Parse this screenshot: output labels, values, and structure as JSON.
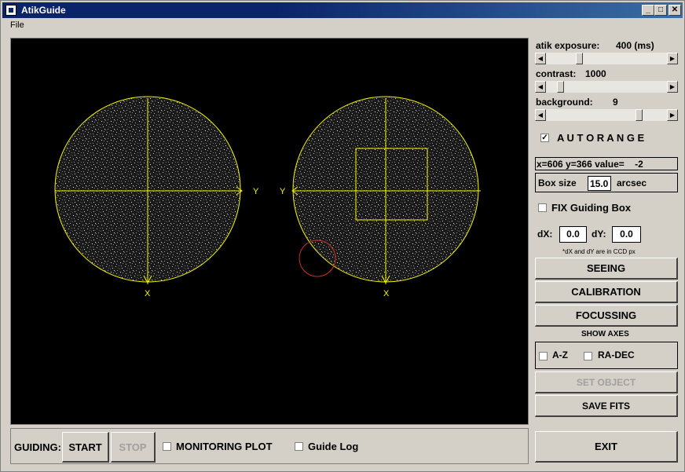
{
  "window": {
    "title": "AtikGuide",
    "min": "_",
    "max": "□",
    "close": "✕"
  },
  "menu": {
    "file": "File"
  },
  "viewport": {
    "axis_left_y": "Y",
    "axis_left_x": "X",
    "axis_right_y": "Y",
    "axis_right_x": "X",
    "crosshair_color": "#f5f500",
    "marker_color": "#d03020"
  },
  "controls": {
    "exposure_label": "atik exposure:",
    "exposure_value": "400 (ms)",
    "contrast_label": "contrast:",
    "contrast_value": "1000",
    "background_label": "background:",
    "background_value": "9",
    "autorange_label": "A U T O R A N G E",
    "autorange_checked": "✓",
    "coord_readout": "x=606 y=366 value=    -2",
    "box_size_label": "Box size",
    "box_size_value": "15.0",
    "box_size_unit": "arcsec",
    "fix_box_label": "FIX Guiding Box",
    "dx_label": "dX:",
    "dx_value": "0.0",
    "dy_label": "dY:",
    "dy_value": "0.0",
    "dx_note": "*dX and dY are in CCD px",
    "seeing": "SEEING",
    "calibration": "CALIBRATION",
    "focussing": "FOCUSSING",
    "show_axes": "SHOW AXES",
    "az_label": "A-Z",
    "radec_label": "RA-DEC",
    "set_object": "SET OBJECT",
    "save_fits": "SAVE FITS",
    "exit": "EXIT"
  },
  "guiding": {
    "label": "GUIDING:",
    "start": "START",
    "stop": "STOP",
    "monitoring": "MONITORING PLOT",
    "guide_log": "Guide Log"
  }
}
